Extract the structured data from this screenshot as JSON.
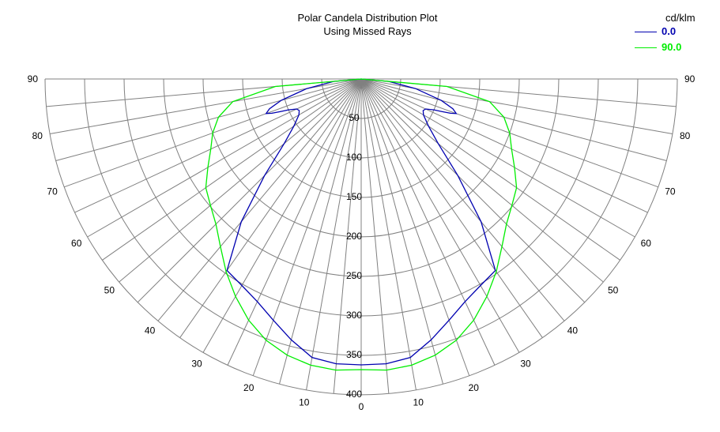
{
  "chart_data": {
    "type": "line",
    "title": "Polar Candela Distribution Plot",
    "subtitle": "Using Missed Rays",
    "units_label": "cd/klm",
    "polar": true,
    "angle_ticks": [
      0,
      10,
      20,
      30,
      40,
      50,
      60,
      70,
      80,
      90
    ],
    "radial_ticks": [
      50,
      100,
      150,
      200,
      250,
      300,
      350,
      400
    ],
    "rmax": 400,
    "grid": true,
    "legend_position": "top-right",
    "series": [
      {
        "name": "0.0",
        "color": "#0000b0",
        "angles": [
          0,
          5,
          10,
          15,
          20,
          25,
          30,
          35,
          40,
          45,
          50,
          55,
          60,
          63,
          65,
          67,
          68,
          69,
          70,
          72,
          75,
          80,
          85,
          90
        ],
        "values": [
          362,
          362,
          358,
          342,
          325,
          311,
          302,
          296,
          236,
          173,
          127,
          104,
          91,
          88,
          90,
          100,
          110,
          121,
          128,
          122,
          105,
          70,
          35,
          0
        ]
      },
      {
        "name": "90.0",
        "color": "#00ee00",
        "angles": [
          0,
          5,
          10,
          15,
          20,
          25,
          30,
          35,
          40,
          45,
          50,
          55,
          60,
          65,
          70,
          75,
          80,
          85,
          90
        ],
        "values": [
          368,
          370,
          368,
          362,
          352,
          337,
          318,
          298,
          277,
          260,
          249,
          240,
          224,
          210,
          200,
          187,
          165,
          109,
          0
        ]
      }
    ]
  }
}
